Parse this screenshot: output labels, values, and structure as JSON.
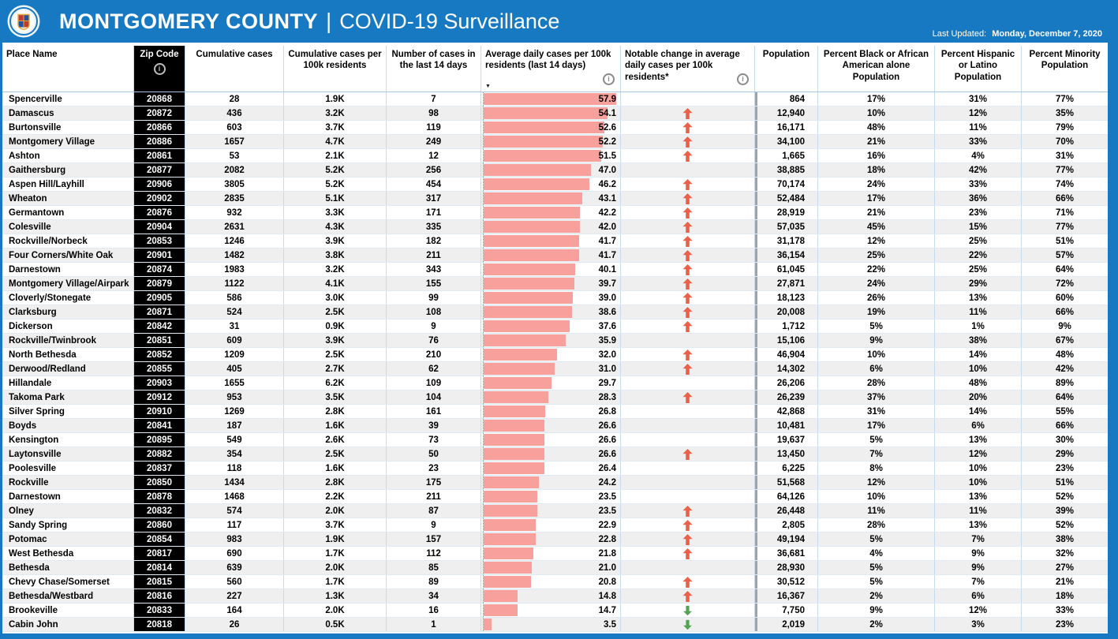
{
  "topbar": {
    "title_main": "MONTGOMERY COUNTY",
    "title_separator": "|",
    "title_sub": "COVID-19 Surveillance",
    "last_updated_label": "Last Updated:",
    "last_updated_value": "Monday, December 7, 2020",
    "logo": "montgomery-county-seal"
  },
  "colors": {
    "accent_blue": "#1779c1",
    "bar_salmon": "#f7a09c",
    "up_arrow_orange": "#ec6049",
    "down_arrow_green": "#52a352",
    "zip_column_black": "#000000",
    "alt_row_gray": "#efefef"
  },
  "table": {
    "bar_max": 57.9,
    "sort_indicator": "▼",
    "info_icon_glyph": "i",
    "columns": [
      {
        "key": "place",
        "label": "Place Name"
      },
      {
        "key": "zip",
        "label": "Zip Code"
      },
      {
        "key": "cumulative",
        "label": "Cumulative cases"
      },
      {
        "key": "per_100k",
        "label": "Cumulative cases per 100k residents"
      },
      {
        "key": "last_14",
        "label": "Number of cases in the last 14 days"
      },
      {
        "key": "avg_daily",
        "label": "Average daily cases per 100k residents (last 14 days)"
      },
      {
        "key": "change",
        "label": "Notable change in average daily cases per 100k residents*"
      },
      {
        "key": "population",
        "label": "Population"
      },
      {
        "key": "pct_black",
        "label": "Percent Black or African American alone Population"
      },
      {
        "key": "pct_hispanic",
        "label": "Percent Hispanic or Latino Population"
      },
      {
        "key": "pct_minority",
        "label": "Percent Minority Population"
      }
    ],
    "rows": [
      {
        "place": "Spencerville",
        "zip": "20868",
        "cumulative": "28",
        "per_100k": "1.9K",
        "last_14": "7",
        "avg_daily": 57.9,
        "change": "",
        "population": "864",
        "pct_black": "17%",
        "pct_hispanic": "31%",
        "pct_minority": "77%"
      },
      {
        "place": "Damascus",
        "zip": "20872",
        "cumulative": "436",
        "per_100k": "3.2K",
        "last_14": "98",
        "avg_daily": 54.1,
        "change": "up",
        "population": "12,940",
        "pct_black": "10%",
        "pct_hispanic": "12%",
        "pct_minority": "35%"
      },
      {
        "place": "Burtonsville",
        "zip": "20866",
        "cumulative": "603",
        "per_100k": "3.7K",
        "last_14": "119",
        "avg_daily": 52.6,
        "change": "up",
        "population": "16,171",
        "pct_black": "48%",
        "pct_hispanic": "11%",
        "pct_minority": "79%"
      },
      {
        "place": "Montgomery Village",
        "zip": "20886",
        "cumulative": "1657",
        "per_100k": "4.7K",
        "last_14": "249",
        "avg_daily": 52.2,
        "change": "up",
        "population": "34,100",
        "pct_black": "21%",
        "pct_hispanic": "33%",
        "pct_minority": "70%"
      },
      {
        "place": "Ashton",
        "zip": "20861",
        "cumulative": "53",
        "per_100k": "2.1K",
        "last_14": "12",
        "avg_daily": 51.5,
        "change": "up",
        "population": "1,665",
        "pct_black": "16%",
        "pct_hispanic": "4%",
        "pct_minority": "31%"
      },
      {
        "place": "Gaithersburg",
        "zip": "20877",
        "cumulative": "2082",
        "per_100k": "5.2K",
        "last_14": "256",
        "avg_daily": 47.0,
        "change": "",
        "population": "38,885",
        "pct_black": "18%",
        "pct_hispanic": "42%",
        "pct_minority": "77%"
      },
      {
        "place": "Aspen Hill/Layhill",
        "zip": "20906",
        "cumulative": "3805",
        "per_100k": "5.2K",
        "last_14": "454",
        "avg_daily": 46.2,
        "change": "up",
        "population": "70,174",
        "pct_black": "24%",
        "pct_hispanic": "33%",
        "pct_minority": "74%"
      },
      {
        "place": "Wheaton",
        "zip": "20902",
        "cumulative": "2835",
        "per_100k": "5.1K",
        "last_14": "317",
        "avg_daily": 43.1,
        "change": "up",
        "population": "52,484",
        "pct_black": "17%",
        "pct_hispanic": "36%",
        "pct_minority": "66%"
      },
      {
        "place": "Germantown",
        "zip": "20876",
        "cumulative": "932",
        "per_100k": "3.3K",
        "last_14": "171",
        "avg_daily": 42.2,
        "change": "up",
        "population": "28,919",
        "pct_black": "21%",
        "pct_hispanic": "23%",
        "pct_minority": "71%"
      },
      {
        "place": "Colesville",
        "zip": "20904",
        "cumulative": "2631",
        "per_100k": "4.3K",
        "last_14": "335",
        "avg_daily": 42.0,
        "change": "up",
        "population": "57,035",
        "pct_black": "45%",
        "pct_hispanic": "15%",
        "pct_minority": "77%"
      },
      {
        "place": "Rockville/Norbeck",
        "zip": "20853",
        "cumulative": "1246",
        "per_100k": "3.9K",
        "last_14": "182",
        "avg_daily": 41.7,
        "change": "up",
        "population": "31,178",
        "pct_black": "12%",
        "pct_hispanic": "25%",
        "pct_minority": "51%"
      },
      {
        "place": "Four Corners/White Oak",
        "zip": "20901",
        "cumulative": "1482",
        "per_100k": "3.8K",
        "last_14": "211",
        "avg_daily": 41.7,
        "change": "up",
        "population": "36,154",
        "pct_black": "25%",
        "pct_hispanic": "22%",
        "pct_minority": "57%"
      },
      {
        "place": "Darnestown",
        "zip": "20874",
        "cumulative": "1983",
        "per_100k": "3.2K",
        "last_14": "343",
        "avg_daily": 40.1,
        "change": "up",
        "population": "61,045",
        "pct_black": "22%",
        "pct_hispanic": "25%",
        "pct_minority": "64%"
      },
      {
        "place": "Montgomery Village/Airpark",
        "zip": "20879",
        "cumulative": "1122",
        "per_100k": "4.1K",
        "last_14": "155",
        "avg_daily": 39.7,
        "change": "up",
        "population": "27,871",
        "pct_black": "24%",
        "pct_hispanic": "29%",
        "pct_minority": "72%"
      },
      {
        "place": "Cloverly/Stonegate",
        "zip": "20905",
        "cumulative": "586",
        "per_100k": "3.0K",
        "last_14": "99",
        "avg_daily": 39.0,
        "change": "up",
        "population": "18,123",
        "pct_black": "26%",
        "pct_hispanic": "13%",
        "pct_minority": "60%"
      },
      {
        "place": "Clarksburg",
        "zip": "20871",
        "cumulative": "524",
        "per_100k": "2.5K",
        "last_14": "108",
        "avg_daily": 38.6,
        "change": "up",
        "population": "20,008",
        "pct_black": "19%",
        "pct_hispanic": "11%",
        "pct_minority": "66%"
      },
      {
        "place": "Dickerson",
        "zip": "20842",
        "cumulative": "31",
        "per_100k": "0.9K",
        "last_14": "9",
        "avg_daily": 37.6,
        "change": "up",
        "population": "1,712",
        "pct_black": "5%",
        "pct_hispanic": "1%",
        "pct_minority": "9%"
      },
      {
        "place": "Rockville/Twinbrook",
        "zip": "20851",
        "cumulative": "609",
        "per_100k": "3.9K",
        "last_14": "76",
        "avg_daily": 35.9,
        "change": "",
        "population": "15,106",
        "pct_black": "9%",
        "pct_hispanic": "38%",
        "pct_minority": "67%"
      },
      {
        "place": "North Bethesda",
        "zip": "20852",
        "cumulative": "1209",
        "per_100k": "2.5K",
        "last_14": "210",
        "avg_daily": 32.0,
        "change": "up",
        "population": "46,904",
        "pct_black": "10%",
        "pct_hispanic": "14%",
        "pct_minority": "48%"
      },
      {
        "place": "Derwood/Redland",
        "zip": "20855",
        "cumulative": "405",
        "per_100k": "2.7K",
        "last_14": "62",
        "avg_daily": 31.0,
        "change": "up",
        "population": "14,302",
        "pct_black": "6%",
        "pct_hispanic": "10%",
        "pct_minority": "42%"
      },
      {
        "place": "Hillandale",
        "zip": "20903",
        "cumulative": "1655",
        "per_100k": "6.2K",
        "last_14": "109",
        "avg_daily": 29.7,
        "change": "",
        "population": "26,206",
        "pct_black": "28%",
        "pct_hispanic": "48%",
        "pct_minority": "89%"
      },
      {
        "place": "Takoma Park",
        "zip": "20912",
        "cumulative": "953",
        "per_100k": "3.5K",
        "last_14": "104",
        "avg_daily": 28.3,
        "change": "up",
        "population": "26,239",
        "pct_black": "37%",
        "pct_hispanic": "20%",
        "pct_minority": "64%"
      },
      {
        "place": "Silver Spring",
        "zip": "20910",
        "cumulative": "1269",
        "per_100k": "2.8K",
        "last_14": "161",
        "avg_daily": 26.8,
        "change": "",
        "population": "42,868",
        "pct_black": "31%",
        "pct_hispanic": "14%",
        "pct_minority": "55%"
      },
      {
        "place": "Boyds",
        "zip": "20841",
        "cumulative": "187",
        "per_100k": "1.6K",
        "last_14": "39",
        "avg_daily": 26.6,
        "change": "",
        "population": "10,481",
        "pct_black": "17%",
        "pct_hispanic": "6%",
        "pct_minority": "66%"
      },
      {
        "place": "Kensington",
        "zip": "20895",
        "cumulative": "549",
        "per_100k": "2.6K",
        "last_14": "73",
        "avg_daily": 26.6,
        "change": "",
        "population": "19,637",
        "pct_black": "5%",
        "pct_hispanic": "13%",
        "pct_minority": "30%"
      },
      {
        "place": "Laytonsville",
        "zip": "20882",
        "cumulative": "354",
        "per_100k": "2.5K",
        "last_14": "50",
        "avg_daily": 26.6,
        "change": "up",
        "population": "13,450",
        "pct_black": "7%",
        "pct_hispanic": "12%",
        "pct_minority": "29%"
      },
      {
        "place": "Poolesville",
        "zip": "20837",
        "cumulative": "118",
        "per_100k": "1.6K",
        "last_14": "23",
        "avg_daily": 26.4,
        "change": "",
        "population": "6,225",
        "pct_black": "8%",
        "pct_hispanic": "10%",
        "pct_minority": "23%"
      },
      {
        "place": "Rockville",
        "zip": "20850",
        "cumulative": "1434",
        "per_100k": "2.8K",
        "last_14": "175",
        "avg_daily": 24.2,
        "change": "",
        "population": "51,568",
        "pct_black": "12%",
        "pct_hispanic": "10%",
        "pct_minority": "51%"
      },
      {
        "place": "Darnestown",
        "zip": "20878",
        "cumulative": "1468",
        "per_100k": "2.2K",
        "last_14": "211",
        "avg_daily": 23.5,
        "change": "",
        "population": "64,126",
        "pct_black": "10%",
        "pct_hispanic": "13%",
        "pct_minority": "52%"
      },
      {
        "place": "Olney",
        "zip": "20832",
        "cumulative": "574",
        "per_100k": "2.0K",
        "last_14": "87",
        "avg_daily": 23.5,
        "change": "up",
        "population": "26,448",
        "pct_black": "11%",
        "pct_hispanic": "11%",
        "pct_minority": "39%"
      },
      {
        "place": "Sandy Spring",
        "zip": "20860",
        "cumulative": "117",
        "per_100k": "3.7K",
        "last_14": "9",
        "avg_daily": 22.9,
        "change": "up",
        "population": "2,805",
        "pct_black": "28%",
        "pct_hispanic": "13%",
        "pct_minority": "52%"
      },
      {
        "place": "Potomac",
        "zip": "20854",
        "cumulative": "983",
        "per_100k": "1.9K",
        "last_14": "157",
        "avg_daily": 22.8,
        "change": "up",
        "population": "49,194",
        "pct_black": "5%",
        "pct_hispanic": "7%",
        "pct_minority": "38%"
      },
      {
        "place": "West Bethesda",
        "zip": "20817",
        "cumulative": "690",
        "per_100k": "1.7K",
        "last_14": "112",
        "avg_daily": 21.8,
        "change": "up",
        "population": "36,681",
        "pct_black": "4%",
        "pct_hispanic": "9%",
        "pct_minority": "32%"
      },
      {
        "place": "Bethesda",
        "zip": "20814",
        "cumulative": "639",
        "per_100k": "2.0K",
        "last_14": "85",
        "avg_daily": 21.0,
        "change": "",
        "population": "28,930",
        "pct_black": "5%",
        "pct_hispanic": "9%",
        "pct_minority": "27%"
      },
      {
        "place": "Chevy Chase/Somerset",
        "zip": "20815",
        "cumulative": "560",
        "per_100k": "1.7K",
        "last_14": "89",
        "avg_daily": 20.8,
        "change": "up",
        "population": "30,512",
        "pct_black": "5%",
        "pct_hispanic": "7%",
        "pct_minority": "21%"
      },
      {
        "place": "Bethesda/Westbard",
        "zip": "20816",
        "cumulative": "227",
        "per_100k": "1.3K",
        "last_14": "34",
        "avg_daily": 14.8,
        "change": "up",
        "population": "16,367",
        "pct_black": "2%",
        "pct_hispanic": "6%",
        "pct_minority": "18%"
      },
      {
        "place": "Brookeville",
        "zip": "20833",
        "cumulative": "164",
        "per_100k": "2.0K",
        "last_14": "16",
        "avg_daily": 14.7,
        "change": "down",
        "population": "7,750",
        "pct_black": "9%",
        "pct_hispanic": "12%",
        "pct_minority": "33%"
      },
      {
        "place": "Cabin John",
        "zip": "20818",
        "cumulative": "26",
        "per_100k": "0.5K",
        "last_14": "1",
        "avg_daily": 3.5,
        "change": "down",
        "population": "2,019",
        "pct_black": "2%",
        "pct_hispanic": "3%",
        "pct_minority": "23%"
      }
    ]
  }
}
